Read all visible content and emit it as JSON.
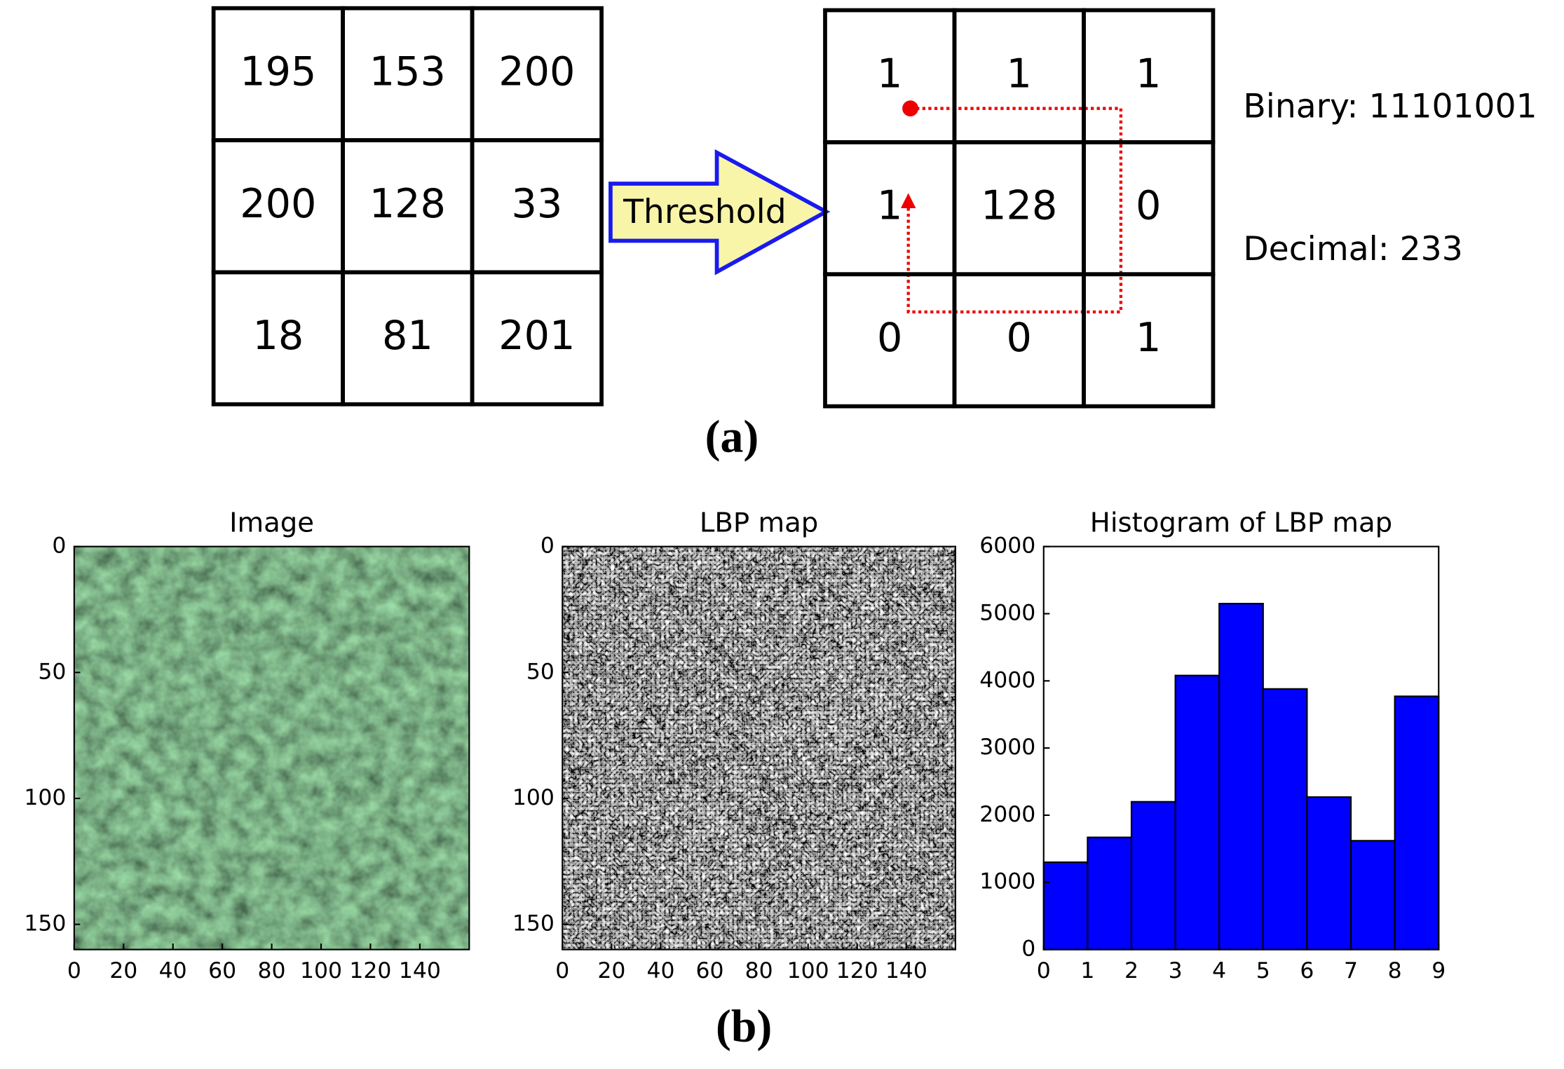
{
  "panel_a": {
    "input_grid": [
      [
        195,
        153,
        200
      ],
      [
        200,
        128,
        33
      ],
      [
        18,
        81,
        201
      ]
    ],
    "arrow_label": "Threshold",
    "output_grid": [
      [
        1,
        1,
        1
      ],
      [
        1,
        128,
        0
      ],
      [
        0,
        0,
        1
      ]
    ],
    "binary": "Binary: 11101001",
    "decimal": "Decimal: 233",
    "caption": "(a)"
  },
  "panel_b": {
    "caption": "(b)",
    "image": {
      "title": "Image",
      "xlim": [
        0,
        160
      ],
      "ylim": [
        0,
        160
      ],
      "xticks": [
        0,
        20,
        40,
        60,
        80,
        100,
        120,
        140
      ],
      "yticks": [
        0,
        50,
        100,
        150
      ]
    },
    "lbp_map": {
      "title": "LBP map",
      "xlim": [
        0,
        160
      ],
      "ylim": [
        0,
        160
      ],
      "xticks": [
        0,
        20,
        40,
        60,
        80,
        100,
        120,
        140
      ],
      "yticks": [
        0,
        50,
        100,
        150
      ]
    }
  },
  "chart_data": {
    "type": "histogram",
    "title": "Histogram of LBP map",
    "bins": [
      0,
      1,
      2,
      3,
      4,
      5,
      6,
      7,
      8,
      9
    ],
    "values": [
      1300,
      1670,
      2200,
      4080,
      5150,
      3880,
      2270,
      1620,
      3770
    ],
    "color": "#0000ff",
    "xlim": [
      0,
      9
    ],
    "ylim": [
      0,
      6000
    ],
    "xticks": [
      0,
      1,
      2,
      3,
      4,
      5,
      6,
      7,
      8,
      9
    ],
    "yticks": [
      0,
      1000,
      2000,
      3000,
      4000,
      5000,
      6000
    ]
  }
}
